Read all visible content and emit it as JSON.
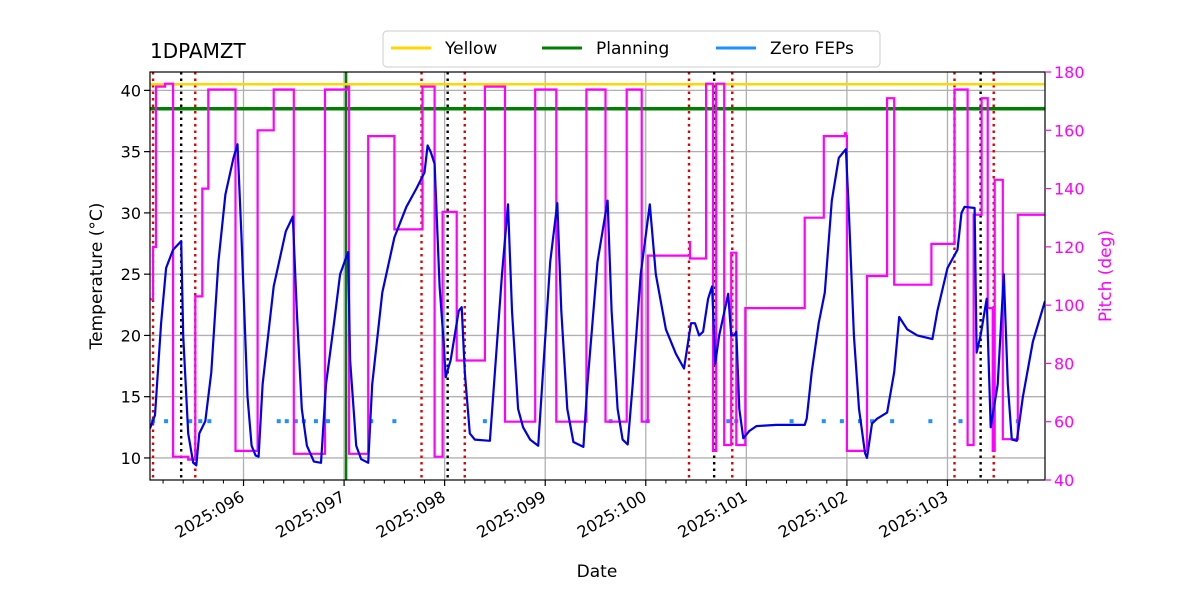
{
  "chart_data": {
    "type": "line",
    "title": "1DPAMZT",
    "xlabel": "Date",
    "ylabel_left": "Temperature ($^\\circ$C)",
    "ylabel_left_display": "Temperature (°C)",
    "ylabel_right": "Pitch (deg)",
    "xlim": [
      95.07,
      103.97
    ],
    "ylim_left": [
      8.2,
      41.5
    ],
    "ylim_right": [
      40,
      180
    ],
    "grid": true,
    "legend_placement": "top-center",
    "x_ticks": [
      {
        "value": 96,
        "label": "2025:096"
      },
      {
        "value": 97,
        "label": "2025:097"
      },
      {
        "value": 98,
        "label": "2025:098"
      },
      {
        "value": 99,
        "label": "2025:099"
      },
      {
        "value": 100,
        "label": "2025:100"
      },
      {
        "value": 101,
        "label": "2025:101"
      },
      {
        "value": 102,
        "label": "2025:102"
      },
      {
        "value": 103,
        "label": "2025:103"
      }
    ],
    "y_ticks_left": [
      10,
      15,
      20,
      25,
      30,
      35,
      40
    ],
    "y_ticks_right": [
      40,
      60,
      80,
      100,
      120,
      140,
      160,
      180
    ],
    "legend": [
      {
        "name": "Yellow",
        "color": "#ffd700"
      },
      {
        "name": "Planning",
        "color": "#008000"
      },
      {
        "name": "Zero FEPs",
        "color": "#1e90ff"
      }
    ],
    "colors": {
      "temperature": "#0000e6",
      "pitch": "#ff00ff",
      "yellow": "#ffd700",
      "planning": "#008000",
      "zero_feps": "#1e90ff",
      "red_marker": "#e00000",
      "black_marker": "#000000",
      "grid": "#b0b0b0"
    },
    "yellow_limit": 40.5,
    "planning_limit": 38.5,
    "zero_feps_level": 13.0,
    "zero_feps_x": [
      95.1,
      95.23,
      95.47,
      95.57,
      95.66,
      96.35,
      96.43,
      96.52,
      96.6,
      96.72,
      96.84,
      97.27,
      97.5,
      98.4,
      99.65,
      100.02,
      100.82,
      100.9,
      101.45,
      101.77,
      101.95,
      102.13,
      102.25,
      102.45,
      102.83,
      103.13,
      103.7
    ],
    "vertical_red_dashed": [
      95.1,
      95.52,
      97.77,
      98.2,
      100.43,
      100.86,
      103.07,
      103.46
    ],
    "vertical_black_dashed": [
      95.38,
      98.03,
      100.68,
      103.33
    ],
    "vertical_green_solid": [
      97.02
    ],
    "series": [
      {
        "name": "Temperature",
        "axis": "left",
        "points": [
          [
            95.07,
            12.4
          ],
          [
            95.12,
            13.5
          ],
          [
            95.18,
            21
          ],
          [
            95.23,
            25.5
          ],
          [
            95.3,
            27
          ],
          [
            95.38,
            27.7
          ],
          [
            95.4,
            20
          ],
          [
            95.45,
            12
          ],
          [
            95.5,
            9.6
          ],
          [
            95.53,
            9.4
          ],
          [
            95.56,
            12
          ],
          [
            95.62,
            13
          ],
          [
            95.68,
            17
          ],
          [
            95.75,
            26
          ],
          [
            95.82,
            31.5
          ],
          [
            95.9,
            34.5
          ],
          [
            95.94,
            35.6
          ],
          [
            95.98,
            28
          ],
          [
            96.04,
            15
          ],
          [
            96.08,
            11
          ],
          [
            96.12,
            10.2
          ],
          [
            96.15,
            10.1
          ],
          [
            96.19,
            16
          ],
          [
            96.3,
            24
          ],
          [
            96.42,
            28.5
          ],
          [
            96.49,
            29.7
          ],
          [
            96.53,
            22
          ],
          [
            96.58,
            14
          ],
          [
            96.63,
            11
          ],
          [
            96.7,
            9.7
          ],
          [
            96.77,
            9.6
          ],
          [
            96.82,
            16
          ],
          [
            96.9,
            21
          ],
          [
            96.96,
            25
          ],
          [
            97.04,
            26.8
          ],
          [
            97.06,
            18
          ],
          [
            97.12,
            11
          ],
          [
            97.17,
            9.9
          ],
          [
            97.24,
            9.6
          ],
          [
            97.28,
            16
          ],
          [
            97.38,
            23.5
          ],
          [
            97.5,
            28
          ],
          [
            97.62,
            30.5
          ],
          [
            97.72,
            32
          ],
          [
            97.8,
            33.3
          ],
          [
            97.83,
            35.5
          ],
          [
            97.86,
            35
          ],
          [
            97.9,
            34
          ],
          [
            97.95,
            24
          ],
          [
            97.99,
            19.5
          ],
          [
            98.01,
            16.6
          ],
          [
            98.06,
            18
          ],
          [
            98.1,
            20
          ],
          [
            98.14,
            22
          ],
          [
            98.17,
            22.3
          ],
          [
            98.2,
            17
          ],
          [
            98.25,
            12
          ],
          [
            98.3,
            11.5
          ],
          [
            98.45,
            11.4
          ],
          [
            98.5,
            17
          ],
          [
            98.57,
            25
          ],
          [
            98.63,
            30.7
          ],
          [
            98.67,
            22
          ],
          [
            98.73,
            14
          ],
          [
            98.78,
            12.5
          ],
          [
            98.85,
            11.5
          ],
          [
            98.93,
            11
          ],
          [
            98.97,
            16
          ],
          [
            99.05,
            26
          ],
          [
            99.12,
            30.8
          ],
          [
            99.16,
            22
          ],
          [
            99.22,
            14
          ],
          [
            99.28,
            11.3
          ],
          [
            99.38,
            10.9
          ],
          [
            99.42,
            16
          ],
          [
            99.52,
            26
          ],
          [
            99.62,
            31
          ],
          [
            99.66,
            22
          ],
          [
            99.72,
            14
          ],
          [
            99.77,
            11.5
          ],
          [
            99.82,
            11.1
          ],
          [
            99.87,
            16
          ],
          [
            99.95,
            25
          ],
          [
            100.04,
            30.7
          ],
          [
            100.1,
            25
          ],
          [
            100.2,
            20.5
          ],
          [
            100.3,
            18.5
          ],
          [
            100.38,
            17.3
          ],
          [
            100.45,
            21
          ],
          [
            100.49,
            21
          ],
          [
            100.53,
            20
          ],
          [
            100.57,
            20.3
          ],
          [
            100.62,
            23
          ],
          [
            100.66,
            24
          ],
          [
            100.69,
            17.7
          ],
          [
            100.73,
            20
          ],
          [
            100.77,
            21.5
          ],
          [
            100.82,
            23.4
          ],
          [
            100.85,
            20
          ],
          [
            100.88,
            20
          ],
          [
            100.9,
            20.3
          ],
          [
            100.93,
            14
          ],
          [
            100.97,
            11.6
          ],
          [
            101.03,
            12.2
          ],
          [
            101.1,
            12.6
          ],
          [
            101.3,
            12.7
          ],
          [
            101.58,
            12.7
          ],
          [
            101.6,
            13.2
          ],
          [
            101.65,
            17
          ],
          [
            101.72,
            21
          ],
          [
            101.78,
            23.5
          ],
          [
            101.85,
            31
          ],
          [
            101.92,
            34.5
          ],
          [
            101.99,
            35.2
          ],
          [
            102.02,
            30
          ],
          [
            102.07,
            20
          ],
          [
            102.12,
            14
          ],
          [
            102.18,
            10.4
          ],
          [
            102.2,
            10
          ],
          [
            102.25,
            12.8
          ],
          [
            102.3,
            13.2
          ],
          [
            102.4,
            13.7
          ],
          [
            102.47,
            17
          ],
          [
            102.52,
            21.5
          ],
          [
            102.6,
            20.5
          ],
          [
            102.7,
            20
          ],
          [
            102.85,
            19.7
          ],
          [
            102.9,
            22
          ],
          [
            103.0,
            25.5
          ],
          [
            103.1,
            27
          ],
          [
            103.14,
            30
          ],
          [
            103.17,
            30.5
          ],
          [
            103.27,
            30.4
          ],
          [
            103.29,
            18.6
          ],
          [
            103.33,
            20
          ],
          [
            103.39,
            23
          ],
          [
            103.43,
            12.5
          ],
          [
            103.5,
            16
          ],
          [
            103.56,
            25
          ],
          [
            103.6,
            16
          ],
          [
            103.64,
            11.5
          ],
          [
            103.69,
            11.4
          ],
          [
            103.75,
            15
          ],
          [
            103.85,
            19.5
          ],
          [
            103.97,
            22.8
          ]
        ]
      },
      {
        "name": "Pitch",
        "axis": "right",
        "points": [
          [
            95.07,
            102
          ],
          [
            95.1,
            102
          ],
          [
            95.1,
            120
          ],
          [
            95.13,
            120
          ],
          [
            95.13,
            175
          ],
          [
            95.22,
            175
          ],
          [
            95.22,
            176
          ],
          [
            95.3,
            176
          ],
          [
            95.3,
            48
          ],
          [
            95.45,
            48
          ],
          [
            95.45,
            47
          ],
          [
            95.52,
            47
          ],
          [
            95.52,
            103
          ],
          [
            95.59,
            103
          ],
          [
            95.59,
            140
          ],
          [
            95.65,
            140
          ],
          [
            95.65,
            174
          ],
          [
            95.92,
            174
          ],
          [
            95.92,
            50
          ],
          [
            96.14,
            50
          ],
          [
            96.14,
            160
          ],
          [
            96.3,
            160
          ],
          [
            96.3,
            174
          ],
          [
            96.5,
            174
          ],
          [
            96.5,
            49
          ],
          [
            96.81,
            49
          ],
          [
            96.81,
            174
          ],
          [
            97.04,
            174
          ],
          [
            97.04,
            175
          ],
          [
            97.05,
            175
          ],
          [
            97.05,
            49
          ],
          [
            97.24,
            49
          ],
          [
            97.24,
            158
          ],
          [
            97.5,
            158
          ],
          [
            97.5,
            126
          ],
          [
            97.78,
            126
          ],
          [
            97.78,
            175
          ],
          [
            97.9,
            175
          ],
          [
            97.9,
            48
          ],
          [
            97.98,
            48
          ],
          [
            97.98,
            132
          ],
          [
            98.12,
            132
          ],
          [
            98.12,
            81
          ],
          [
            98.4,
            81
          ],
          [
            98.4,
            175
          ],
          [
            98.6,
            175
          ],
          [
            98.6,
            60
          ],
          [
            98.9,
            60
          ],
          [
            98.9,
            174
          ],
          [
            99.11,
            174
          ],
          [
            99.11,
            60
          ],
          [
            99.41,
            60
          ],
          [
            99.41,
            174
          ],
          [
            99.6,
            174
          ],
          [
            99.6,
            60
          ],
          [
            99.81,
            60
          ],
          [
            99.81,
            174
          ],
          [
            99.96,
            174
          ],
          [
            99.96,
            60
          ],
          [
            100.02,
            60
          ],
          [
            100.02,
            117
          ],
          [
            100.44,
            117
          ],
          [
            100.44,
            122
          ],
          [
            100.44,
            116
          ],
          [
            100.6,
            116
          ],
          [
            100.6,
            176
          ],
          [
            100.67,
            176
          ],
          [
            100.67,
            50
          ],
          [
            100.7,
            50
          ],
          [
            100.7,
            176
          ],
          [
            100.78,
            176
          ],
          [
            100.78,
            52
          ],
          [
            100.85,
            52
          ],
          [
            100.85,
            118
          ],
          [
            100.9,
            118
          ],
          [
            100.9,
            52
          ],
          [
            100.99,
            52
          ],
          [
            100.99,
            99
          ],
          [
            101.58,
            99
          ],
          [
            101.58,
            130
          ],
          [
            101.77,
            130
          ],
          [
            101.77,
            158
          ],
          [
            101.98,
            158
          ],
          [
            101.98,
            159
          ],
          [
            101.99,
            159
          ],
          [
            101.99,
            158
          ],
          [
            102.0,
            158
          ],
          [
            102.0,
            50
          ],
          [
            102.2,
            50
          ],
          [
            102.2,
            110
          ],
          [
            102.4,
            110
          ],
          [
            102.4,
            171
          ],
          [
            102.47,
            171
          ],
          [
            102.47,
            107
          ],
          [
            102.84,
            107
          ],
          [
            102.84,
            121
          ],
          [
            103.07,
            121
          ],
          [
            103.07,
            174
          ],
          [
            103.2,
            174
          ],
          [
            103.2,
            52
          ],
          [
            103.26,
            52
          ],
          [
            103.26,
            131
          ],
          [
            103.34,
            131
          ],
          [
            103.34,
            171
          ],
          [
            103.4,
            171
          ],
          [
            103.4,
            99
          ],
          [
            103.45,
            99
          ],
          [
            103.45,
            50
          ],
          [
            103.47,
            50
          ],
          [
            103.47,
            143
          ],
          [
            103.55,
            143
          ],
          [
            103.55,
            54
          ],
          [
            103.7,
            54
          ],
          [
            103.7,
            131
          ],
          [
            103.97,
            131
          ]
        ]
      }
    ]
  }
}
